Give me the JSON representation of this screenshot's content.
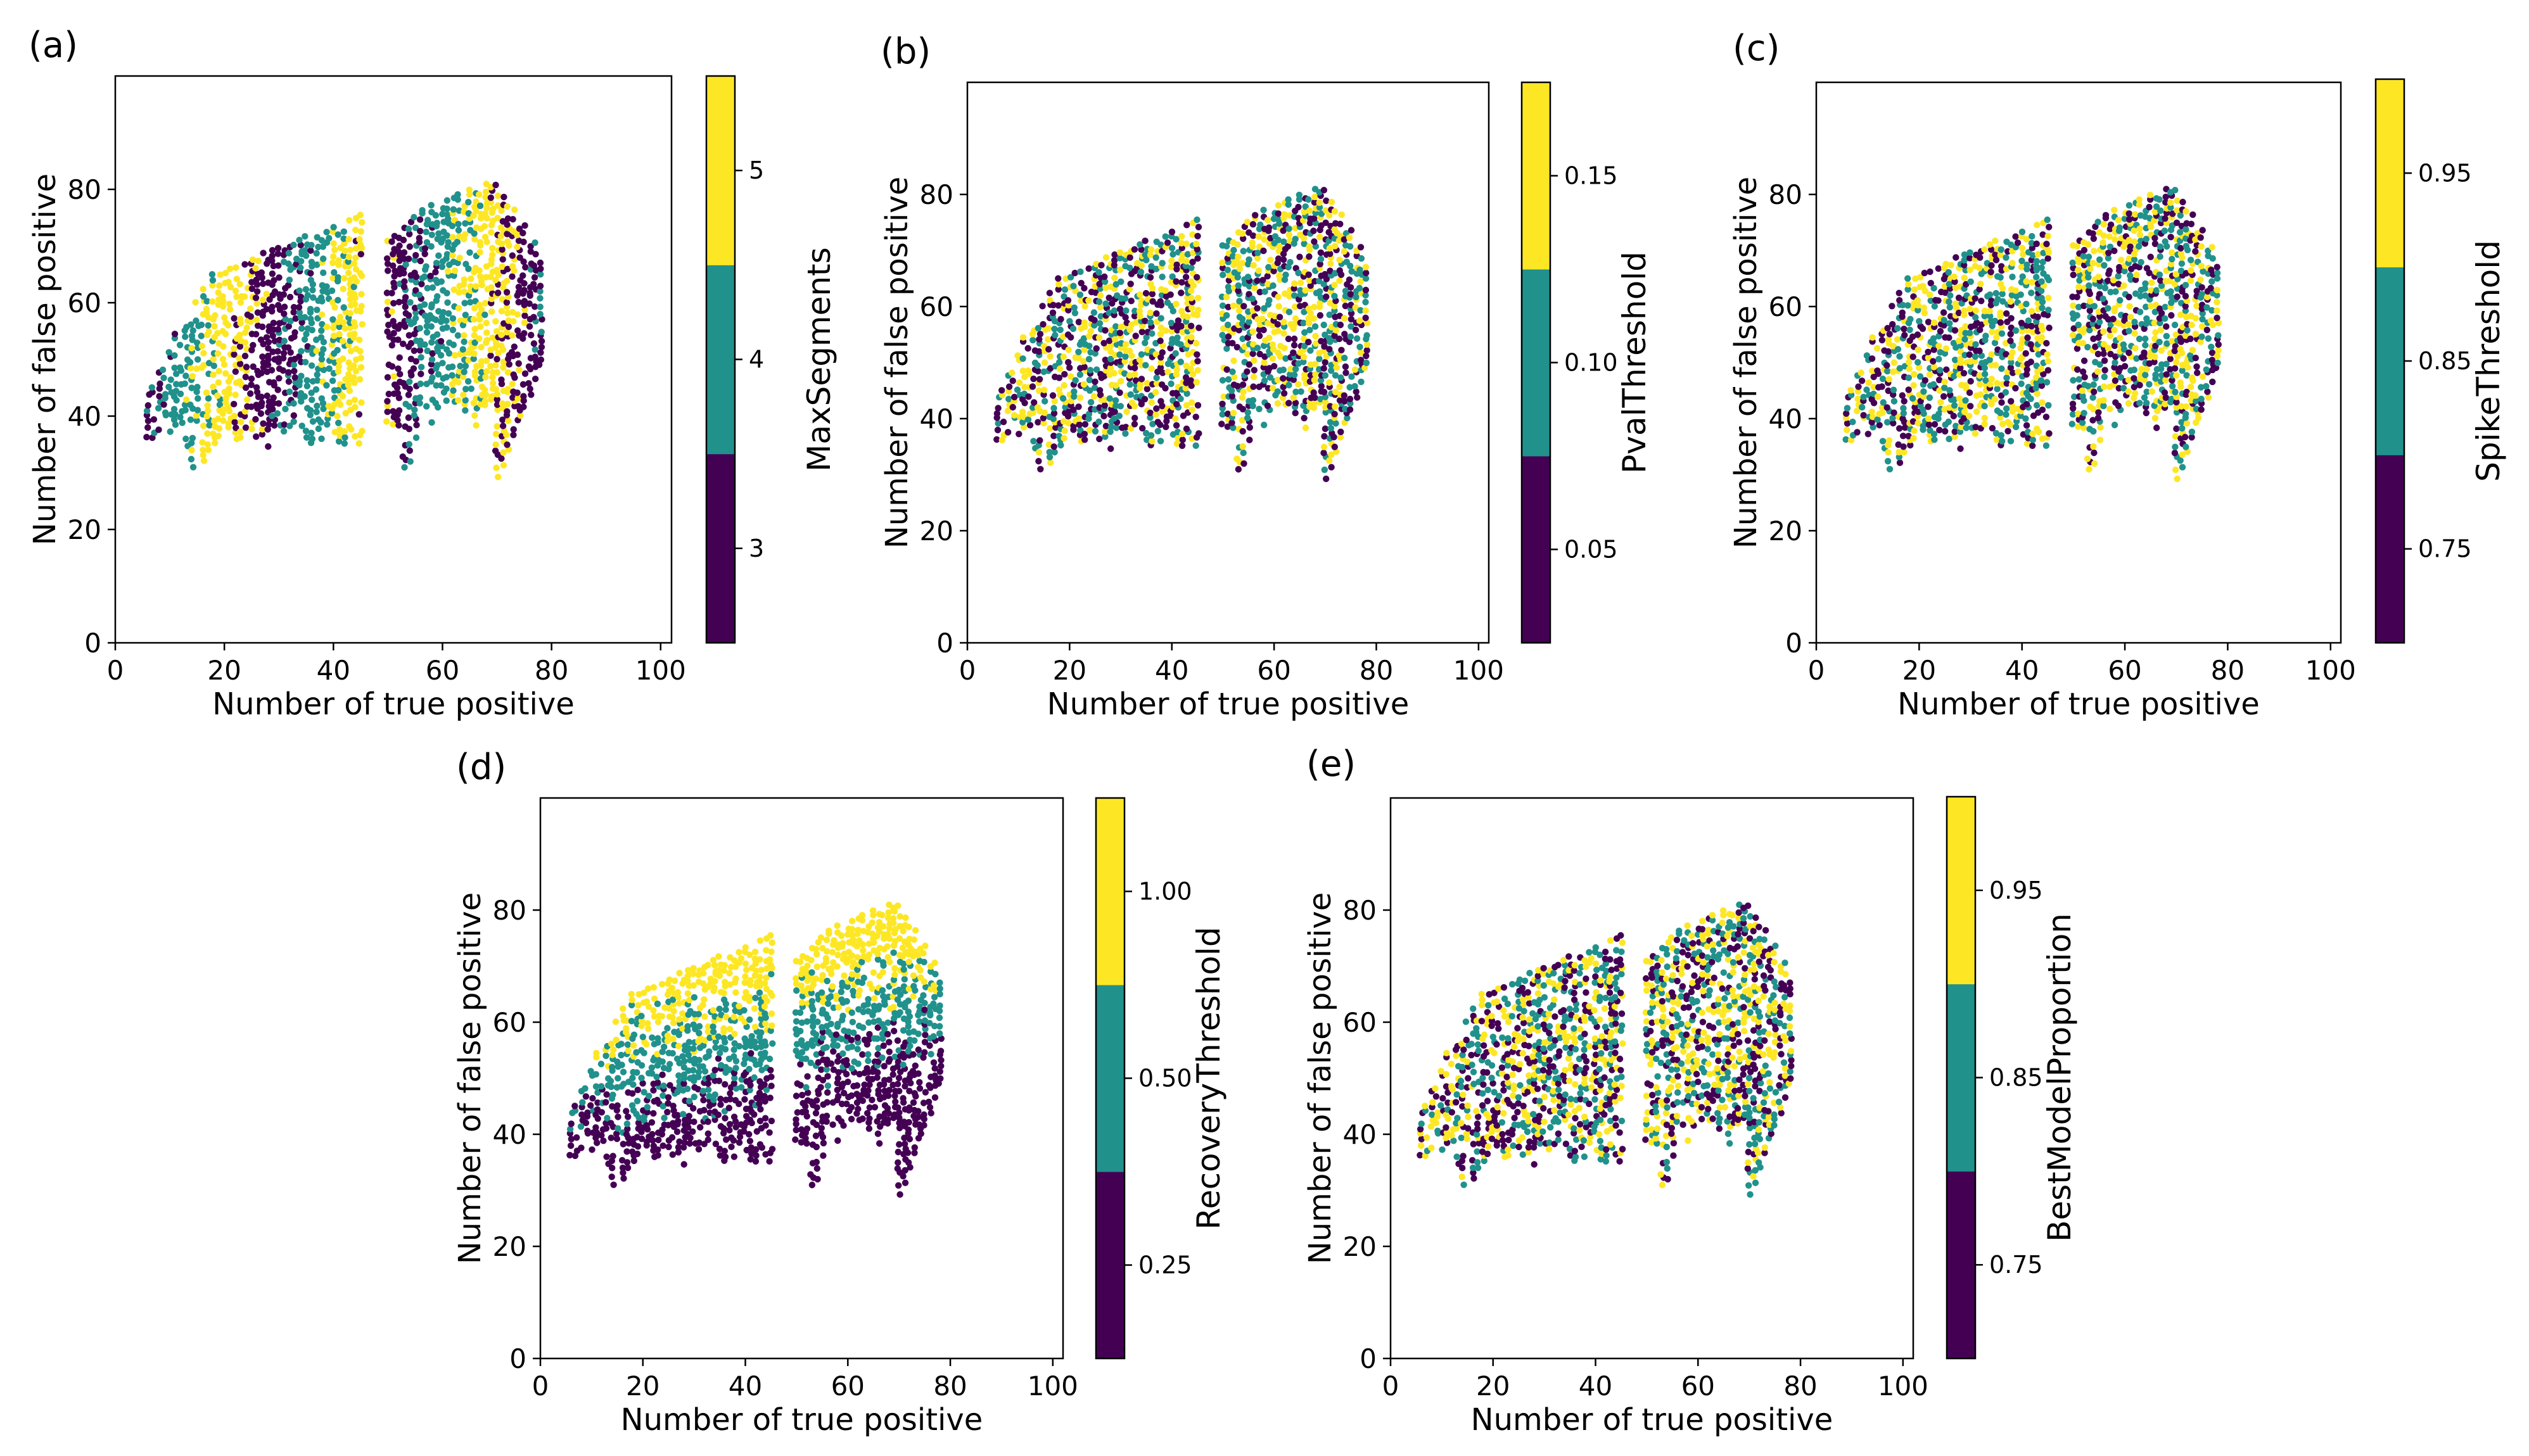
{
  "figure": {
    "description_labels": [
      "(a)",
      "(b)",
      "(c)",
      "(d)",
      "(e)"
    ]
  },
  "colors": {
    "low": "#440154",
    "mid": "#21918c",
    "high": "#fde725"
  },
  "chart_data": [
    {
      "type": "scatter",
      "panel": "(a)",
      "xlabel": "Number of true positive",
      "ylabel": "Number of false positive",
      "xlim": [
        0,
        102
      ],
      "ylim": [
        0,
        100
      ],
      "xticks": [
        "0",
        "20",
        "40",
        "60",
        "80",
        "100"
      ],
      "yticks": [
        "0",
        "20",
        "40",
        "60",
        "80"
      ],
      "colorbar": {
        "label": "MaxSegments",
        "ticks": [
          "3",
          "4",
          "5"
        ],
        "levels": 3
      },
      "seed": 11,
      "pattern": "a"
    },
    {
      "type": "scatter",
      "panel": "(b)",
      "xlabel": "Number of true positive",
      "ylabel": "Number of false positive",
      "xlim": [
        0,
        102
      ],
      "ylim": [
        0,
        100
      ],
      "xticks": [
        "0",
        "20",
        "40",
        "60",
        "80",
        "100"
      ],
      "yticks": [
        "0",
        "20",
        "40",
        "60",
        "80"
      ],
      "colorbar": {
        "label": "PvalThreshold",
        "ticks": [
          "0.05",
          "0.10",
          "0.15"
        ],
        "levels": 3
      },
      "seed": 23,
      "pattern": "random"
    },
    {
      "type": "scatter",
      "panel": "(c)",
      "xlabel": "Number of true positive",
      "ylabel": "Number of false positive",
      "xlim": [
        0,
        102
      ],
      "ylim": [
        0,
        100
      ],
      "xticks": [
        "0",
        "20",
        "40",
        "60",
        "80",
        "100"
      ],
      "yticks": [
        "0",
        "20",
        "40",
        "60",
        "80"
      ],
      "colorbar": {
        "label": "SpikeThreshold",
        "ticks": [
          "0.75",
          "0.85",
          "0.95"
        ],
        "levels": 3
      },
      "seed": 37,
      "pattern": "random"
    },
    {
      "type": "scatter",
      "panel": "(d)",
      "xlabel": "Number of true positive",
      "ylabel": "Number of false positive",
      "xlim": [
        0,
        102
      ],
      "ylim": [
        0,
        100
      ],
      "xticks": [
        "0",
        "20",
        "40",
        "60",
        "80",
        "100"
      ],
      "yticks": [
        "0",
        "20",
        "40",
        "60",
        "80"
      ],
      "colorbar": {
        "label": "RecoveryThreshold",
        "ticks": [
          "0.25",
          "0.50",
          "1.00"
        ],
        "levels": 3
      },
      "seed": 41,
      "pattern": "d"
    },
    {
      "type": "scatter",
      "panel": "(e)",
      "xlabel": "Number of true positive",
      "ylabel": "Number of false positive",
      "xlim": [
        0,
        102
      ],
      "ylim": [
        0,
        100
      ],
      "xticks": [
        "0",
        "20",
        "40",
        "60",
        "80",
        "100"
      ],
      "yticks": [
        "0",
        "20",
        "40",
        "60",
        "80"
      ],
      "colorbar": {
        "label": "BestModelProportion",
        "ticks": [
          "0.75",
          "0.85",
          "0.95"
        ],
        "levels": 3
      },
      "seed": 53,
      "pattern": "random"
    }
  ]
}
